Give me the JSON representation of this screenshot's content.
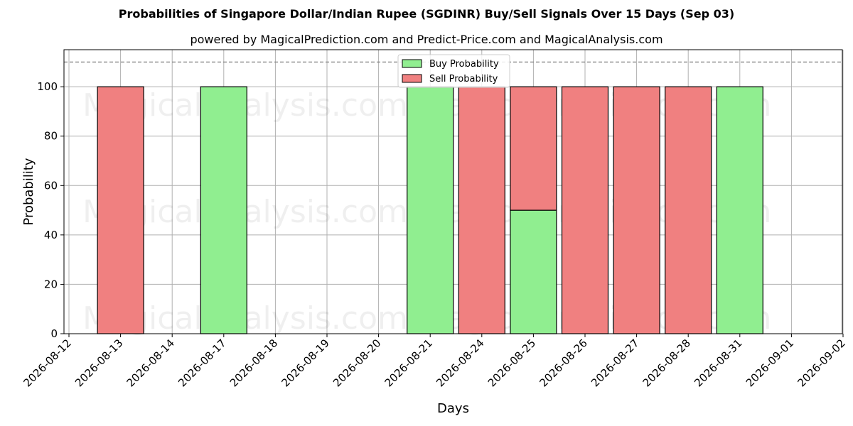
{
  "title": "Probabilities of Singapore Dollar/Indian Rupee (SGDINR) Buy/Sell Signals Over 15 Days (Sep 03)",
  "subtitle": "powered by MagicalPrediction.com and Predict-Price.com and MagicalAnalysis.com",
  "watermarks": [
    "MagicalAnalysis.com",
    "MagicalPrediction.com"
  ],
  "chart_data": {
    "type": "bar",
    "stacked": true,
    "categories": [
      "2026-08-12",
      "2026-08-13",
      "2026-08-14",
      "2026-08-17",
      "2026-08-18",
      "2026-08-19",
      "2026-08-20",
      "2026-08-21",
      "2026-08-24",
      "2026-08-25",
      "2026-08-26",
      "2026-08-27",
      "2026-08-28",
      "2026-08-31",
      "2026-09-01",
      "2026-09-02"
    ],
    "series": [
      {
        "name": "Buy Probability",
        "color": "#90ee90",
        "values": [
          null,
          0,
          null,
          100,
          null,
          null,
          null,
          100,
          0,
          50,
          0,
          0,
          0,
          100,
          null,
          null
        ]
      },
      {
        "name": "Sell Probability",
        "color": "#f08080",
        "values": [
          null,
          100,
          null,
          0,
          null,
          null,
          null,
          0,
          100,
          50,
          100,
          100,
          100,
          0,
          null,
          null
        ]
      }
    ],
    "xlabel": "Days",
    "ylabel": "Probability",
    "ylim": [
      0,
      115
    ],
    "yticks": [
      0,
      20,
      40,
      60,
      80,
      100
    ],
    "reference_line": 110,
    "grid": true,
    "legend": "top-center"
  }
}
